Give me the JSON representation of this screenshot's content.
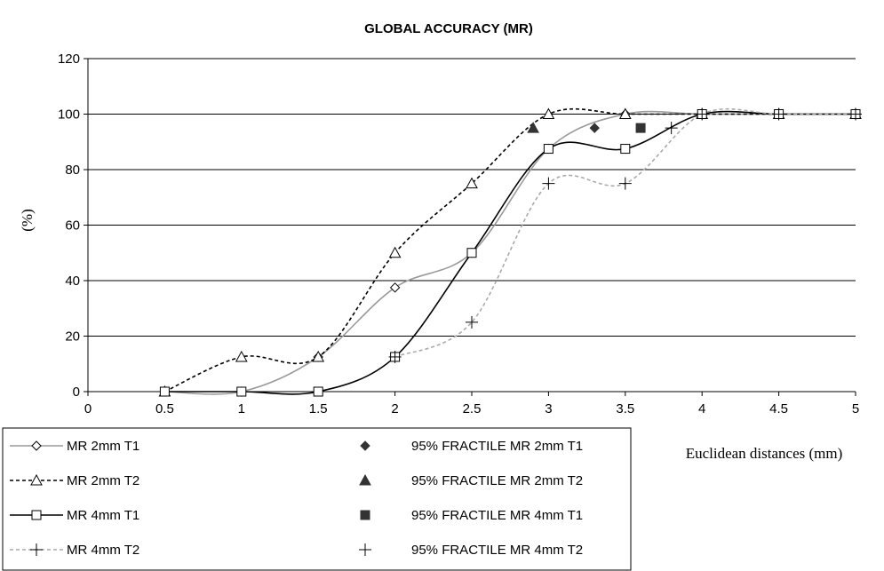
{
  "chart_data": {
    "type": "line",
    "title": "GLOBAL ACCURACY (MR)",
    "xlabel": "Euclidean distances (mm)",
    "ylabel": "(%)",
    "xlim": [
      0,
      5
    ],
    "ylim": [
      0,
      120
    ],
    "x_ticks": [
      0,
      0.5,
      1,
      1.5,
      2,
      2.5,
      3,
      3.5,
      4,
      4.5,
      5
    ],
    "x_tick_labels": [
      "0",
      "0.5",
      "1",
      "1.5",
      "2",
      "2.5",
      "3",
      "3.5",
      "4",
      "4.5",
      "5"
    ],
    "y_ticks": [
      0,
      20,
      40,
      60,
      80,
      100,
      120
    ],
    "y_tick_labels": [
      "0",
      "20",
      "40",
      "60",
      "80",
      "100",
      "120"
    ],
    "grid": "horizontal",
    "legend_position": "bottom",
    "series": [
      {
        "name": "MR 2mm T1",
        "style": "line",
        "color": "#9a9a9a",
        "dash": "",
        "marker": "diamond-open",
        "x": [
          0.5,
          1,
          1.5,
          2,
          2.5,
          3,
          3.5,
          4,
          4.5,
          5
        ],
        "y": [
          0,
          0,
          12.5,
          37.5,
          50,
          87.5,
          100,
          100,
          100,
          100
        ]
      },
      {
        "name": "MR 2mm T2",
        "style": "line",
        "color": "#000000",
        "dash": "4,3",
        "marker": "triangle-open",
        "x": [
          0.5,
          1,
          1.5,
          2,
          2.5,
          3,
          3.5,
          4,
          4.5,
          5
        ],
        "y": [
          0,
          12.5,
          12.5,
          50,
          75,
          100,
          100,
          100,
          100,
          100
        ]
      },
      {
        "name": "MR 4mm T1",
        "style": "line",
        "color": "#000000",
        "dash": "",
        "marker": "square-open",
        "x": [
          0.5,
          1,
          1.5,
          2,
          2.5,
          3,
          3.5,
          4,
          4.5,
          5
        ],
        "y": [
          0,
          0,
          0,
          12.5,
          50,
          87.5,
          87.5,
          100,
          100,
          100
        ]
      },
      {
        "name": "MR 4mm T2",
        "style": "line",
        "color": "#aaaaaa",
        "dash": "4,3",
        "marker": "plus",
        "x": [
          2,
          2.5,
          3,
          3.5,
          4,
          4.5,
          5
        ],
        "y": [
          12.5,
          25,
          75,
          75,
          100,
          100,
          100
        ]
      },
      {
        "name": "95% FRACTILE MR 2mm T1",
        "style": "point",
        "color": "#333333",
        "marker": "diamond-filled",
        "x": [
          3.3
        ],
        "y": [
          95
        ]
      },
      {
        "name": "95% FRACTILE MR 2mm T2",
        "style": "point",
        "color": "#333333",
        "marker": "triangle-filled",
        "x": [
          2.9
        ],
        "y": [
          95
        ]
      },
      {
        "name": "95% FRACTILE MR 4mm T1",
        "style": "point",
        "color": "#333333",
        "marker": "square-filled",
        "x": [
          3.6
        ],
        "y": [
          95
        ]
      },
      {
        "name": "95% FRACTILE MR 4mm T2",
        "style": "point",
        "color": "#000000",
        "marker": "plus",
        "x": [
          3.8
        ],
        "y": [
          95
        ]
      }
    ]
  }
}
